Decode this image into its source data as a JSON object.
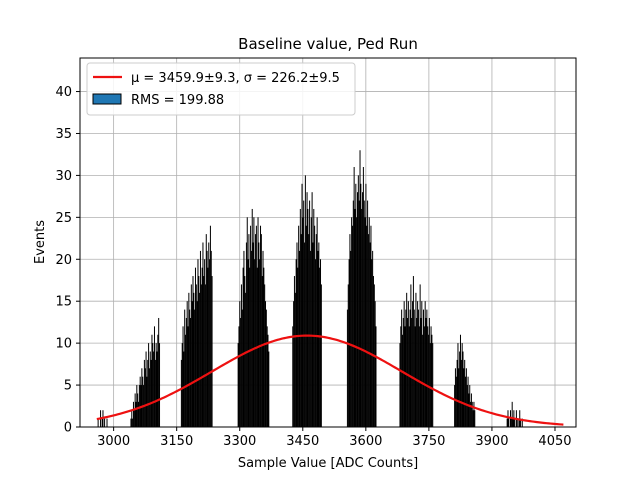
{
  "chart_data": {
    "type": "bar",
    "title": "Baseline value, Ped Run",
    "xlabel": "Sample Value [ADC Counts]",
    "ylabel": "Events",
    "xlim": [
      2920,
      4100
    ],
    "ylim": [
      0,
      44
    ],
    "xticks": [
      3000,
      3150,
      3300,
      3450,
      3600,
      3750,
      3900,
      4050
    ],
    "yticks": [
      0,
      5,
      10,
      15,
      20,
      25,
      30,
      35,
      40
    ],
    "grid": true,
    "legend": {
      "placement": "top-left",
      "fit_label": "μ = 3459.9±9.3, σ = 226.2±9.5",
      "hist_label": "RMS = 199.88"
    },
    "colors": {
      "fit": "#ee1111",
      "histogram_fill": "#000000",
      "legend_patch": "#1f77b4",
      "grid": "#b0b0b0"
    },
    "fit": {
      "mu": 3459.9,
      "sigma": 226.2,
      "amplitude": 10.9,
      "x_start": 2960,
      "x_end": 4070
    },
    "histogram": {
      "bin_width": 2,
      "clusters": [
        {
          "name": "cluster-1",
          "x_range": [
            2960,
            2985
          ],
          "values": [
            0,
            1,
            0,
            0,
            2,
            0,
            1,
            2,
            0,
            1,
            0,
            0,
            1
          ]
        },
        {
          "name": "cluster-2",
          "x_range": [
            3040,
            3110
          ],
          "values": [
            1,
            2,
            1,
            3,
            2,
            4,
            3,
            5,
            4,
            3,
            5,
            6,
            5,
            7,
            6,
            5,
            8,
            7,
            9,
            6,
            8,
            10,
            7,
            9,
            8,
            11,
            10,
            9,
            12,
            8,
            10,
            9,
            11,
            13,
            10
          ]
        },
        {
          "name": "cluster-3",
          "x_range": [
            3160,
            3235
          ],
          "values": [
            8,
            10,
            12,
            9,
            14,
            11,
            13,
            15,
            12,
            16,
            14,
            13,
            17,
            15,
            18,
            16,
            14,
            19,
            17,
            15,
            20,
            18,
            16,
            21,
            17,
            19,
            22,
            18,
            20,
            17,
            23,
            21,
            19,
            22,
            20,
            24,
            21,
            18
          ]
        },
        {
          "name": "cluster-4",
          "x_range": [
            3295,
            3370
          ],
          "values": [
            10,
            12,
            15,
            13,
            17,
            14,
            19,
            21,
            18,
            16,
            22,
            25,
            20,
            23,
            19,
            24,
            21,
            26,
            22,
            25,
            20,
            23,
            24,
            19,
            25,
            22,
            20,
            24,
            23,
            18,
            21,
            19,
            17,
            15,
            14,
            12,
            11,
            9
          ]
        },
        {
          "name": "cluster-5",
          "x_range": [
            3425,
            3495
          ],
          "values": [
            12,
            15,
            18,
            16,
            20,
            22,
            19,
            24,
            21,
            26,
            23,
            29,
            25,
            27,
            22,
            30,
            24,
            28,
            26,
            23,
            27,
            21,
            25,
            28,
            22,
            26,
            24,
            20,
            23,
            25,
            21,
            22,
            19,
            20,
            17
          ]
        },
        {
          "name": "cluster-6",
          "x_range": [
            3555,
            3625
          ],
          "values": [
            14,
            17,
            20,
            23,
            21,
            25,
            24,
            27,
            31,
            26,
            29,
            25,
            28,
            30,
            27,
            33,
            29,
            26,
            28,
            31,
            27,
            25,
            29,
            24,
            27,
            23,
            25,
            22,
            24,
            20,
            21,
            18,
            17,
            15,
            12
          ]
        },
        {
          "name": "cluster-7",
          "x_range": [
            3680,
            3760
          ],
          "values": [
            10,
            12,
            14,
            11,
            13,
            15,
            12,
            14,
            16,
            13,
            15,
            12,
            14,
            17,
            13,
            15,
            18,
            14,
            12,
            16,
            13,
            15,
            14,
            12,
            17,
            13,
            15,
            11,
            14,
            12,
            15,
            13,
            14,
            12,
            11,
            13,
            10,
            12,
            11,
            10
          ]
        },
        {
          "name": "cluster-8",
          "x_range": [
            3810,
            3860
          ],
          "values": [
            5,
            7,
            6,
            8,
            10,
            7,
            9,
            11,
            8,
            10,
            9,
            7,
            8,
            6,
            7,
            5,
            6,
            4,
            5,
            3,
            4,
            3,
            2,
            3,
            2
          ]
        },
        {
          "name": "cluster-9",
          "x_range": [
            3935,
            3975
          ],
          "values": [
            1,
            2,
            1,
            0,
            2,
            1,
            3,
            1,
            2,
            1,
            0,
            2,
            1,
            0,
            1,
            2,
            1,
            0,
            1,
            0
          ]
        }
      ]
    }
  }
}
